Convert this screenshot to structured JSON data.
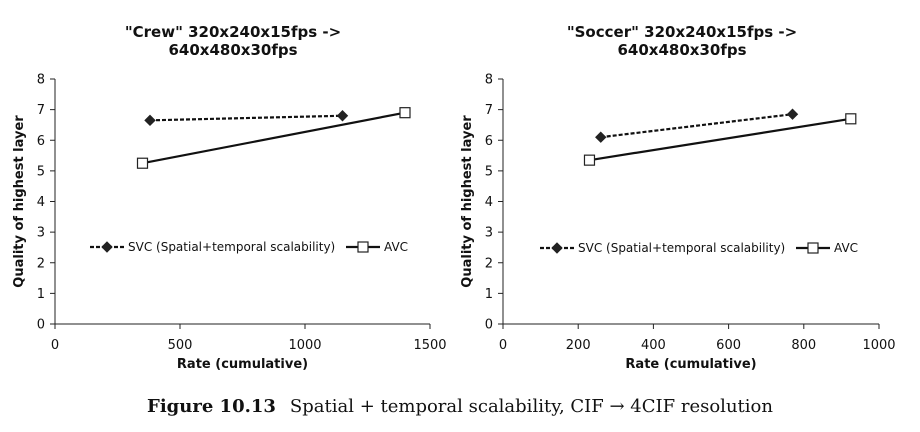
{
  "chart_data": [
    {
      "type": "line",
      "title": [
        "\"Crew\" 320x240x15fps ->",
        "640x480x30fps"
      ],
      "xlabel": "Rate (cumulative)",
      "ylabel": "Quality of highest layer",
      "xlim": [
        0,
        1500
      ],
      "ylim": [
        0,
        8
      ],
      "xticks": [
        0,
        500,
        1000,
        1500
      ],
      "yticks": [
        0,
        1,
        2,
        3,
        4,
        5,
        6,
        7,
        8
      ],
      "grid": false,
      "legend_position": "middle",
      "series": [
        {
          "name": "SVC (Spatial+temporal scalability)",
          "style": "dashed",
          "marker": "diamond",
          "points": [
            [
              380,
              6.65
            ],
            [
              1150,
              6.8
            ]
          ]
        },
        {
          "name": "AVC",
          "style": "solid",
          "marker": "square",
          "points": [
            [
              350,
              5.25
            ],
            [
              1400,
              6.9
            ]
          ]
        }
      ]
    },
    {
      "type": "line",
      "title": [
        "\"Soccer\" 320x240x15fps ->",
        "640x480x30fps"
      ],
      "xlabel": "Rate (cumulative)",
      "ylabel": "Quality of highest layer",
      "xlim": [
        0,
        1000
      ],
      "ylim": [
        0,
        8
      ],
      "xticks": [
        0,
        200,
        400,
        600,
        800,
        1000
      ],
      "yticks": [
        0,
        1,
        2,
        3,
        4,
        5,
        6,
        7,
        8
      ],
      "grid": false,
      "legend_position": "middle",
      "series": [
        {
          "name": "SVC (Spatial+temporal scalability)",
          "style": "dashed",
          "marker": "diamond",
          "points": [
            [
              260,
              6.1
            ],
            [
              770,
              6.85
            ]
          ]
        },
        {
          "name": "AVC",
          "style": "solid",
          "marker": "square",
          "points": [
            [
              230,
              5.35
            ],
            [
              925,
              6.7
            ]
          ]
        }
      ]
    }
  ],
  "caption": {
    "label": "Figure 10.13",
    "text": "Spatial + temporal scalability, CIF → 4CIF resolution"
  }
}
